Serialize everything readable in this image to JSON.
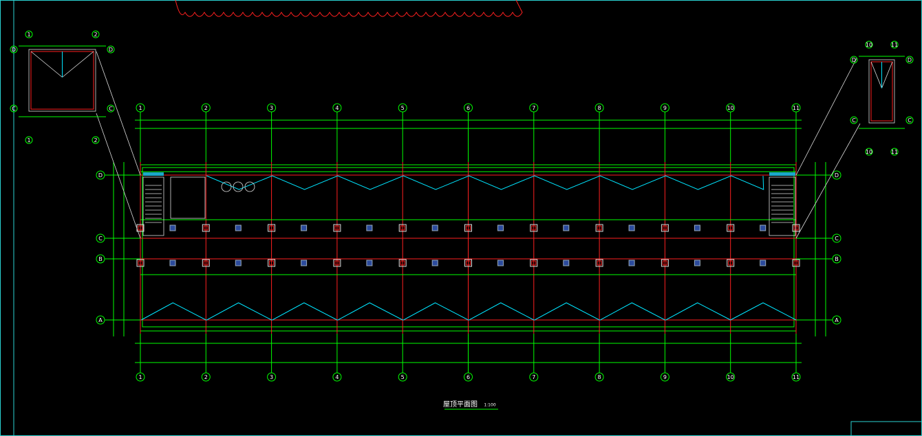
{
  "drawing": {
    "title": "屋顶平面图",
    "scale": "1:100",
    "column_axes": [
      "1",
      "2",
      "3",
      "4",
      "5",
      "6",
      "7",
      "8",
      "9",
      "10",
      "11"
    ],
    "row_axes": [
      "A",
      "B",
      "C",
      "D"
    ],
    "left_detail_axes": [
      "1",
      "2",
      "C",
      "D"
    ],
    "right_detail_axes": [
      "10",
      "11",
      "C",
      "D"
    ]
  }
}
